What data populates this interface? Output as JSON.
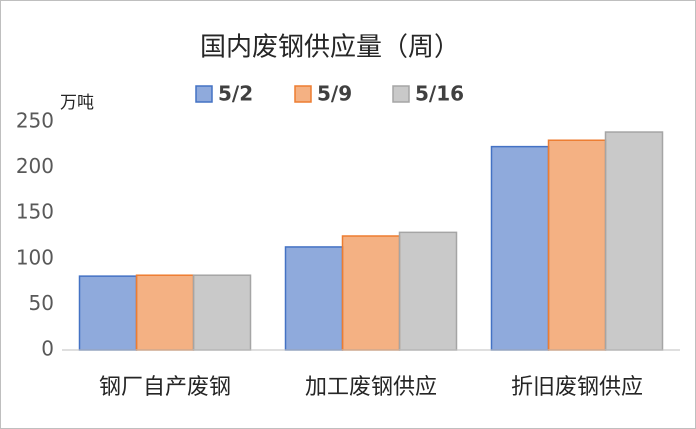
{
  "chart_data": {
    "type": "bar",
    "title": "国内废钢供应量（周）",
    "y_label": "万吨",
    "categories": [
      "钢厂自产废钢",
      "加工废钢供应",
      "折旧废钢供应"
    ],
    "series": [
      {
        "name": "5/2",
        "color": "#4472c4",
        "values": [
          81,
          113,
          223
        ]
      },
      {
        "name": "5/9",
        "color": "#ed7d31",
        "values": [
          82,
          125,
          230
        ]
      },
      {
        "name": "5/16",
        "color": "#a5a5a5",
        "values": [
          82,
          129,
          239
        ]
      }
    ],
    "ylim": [
      0,
      250
    ],
    "yticks": [
      0,
      50,
      100,
      150,
      200,
      250
    ],
    "grid": false
  }
}
